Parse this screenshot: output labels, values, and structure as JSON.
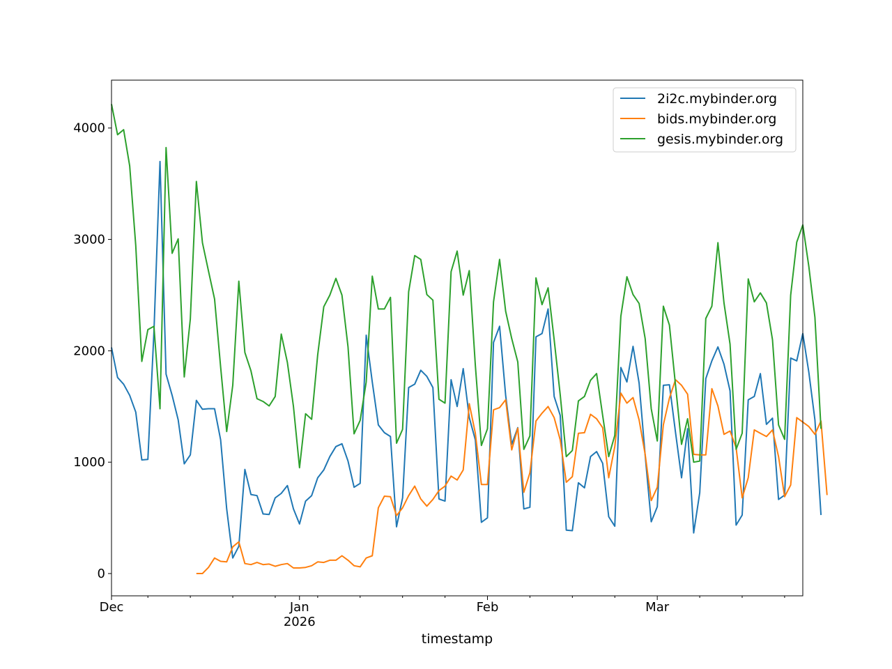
{
  "chart_data": {
    "type": "line",
    "title": "",
    "xlabel": "timestamp",
    "ylabel": "",
    "x_start": "2025-12-01",
    "x_end": "2026-03-25",
    "xlim": [
      "2025-12-01",
      "2026-03-25"
    ],
    "ylim": [
      -200,
      4430
    ],
    "grid": false,
    "legend_position": "top-right",
    "x_major_ticks": [
      {
        "date": "2025-12-01",
        "label": "Dec",
        "sublabel": ""
      },
      {
        "date": "2026-01-01",
        "label": "Jan",
        "sublabel": "2026"
      },
      {
        "date": "2026-02-01",
        "label": "Feb",
        "sublabel": ""
      },
      {
        "date": "2026-03-01",
        "label": "Mar",
        "sublabel": ""
      }
    ],
    "y_ticks": [
      0,
      1000,
      2000,
      3000,
      4000
    ],
    "y_tick_labels": [
      "0",
      "1000",
      "2000",
      "3000",
      "4000"
    ],
    "series": [
      {
        "name": "2i2c.mybinder.org",
        "color": "#1f77b4",
        "start": "2025-12-01",
        "values": [
          2030,
          1760,
          1700,
          1600,
          1450,
          1020,
          1025,
          2170,
          3700,
          1790,
          1600,
          1380,
          985,
          1065,
          1555,
          1475,
          1480,
          1480,
          1200,
          580,
          140,
          245,
          935,
          710,
          700,
          535,
          530,
          680,
          720,
          790,
          580,
          445,
          650,
          700,
          860,
          930,
          1050,
          1140,
          1165,
          1010,
          775,
          810,
          2140,
          1720,
          1335,
          1265,
          1230,
          420,
          680,
          1670,
          1700,
          1825,
          1770,
          1670,
          670,
          650,
          1740,
          1500,
          1840,
          1400,
          1200,
          460,
          500,
          2075,
          2220,
          1600,
          1160,
          1310,
          580,
          595,
          2125,
          2155,
          2375,
          1590,
          1420,
          390,
          385,
          815,
          770,
          1050,
          1095,
          990,
          510,
          425,
          1850,
          1720,
          2040,
          1710,
          1060,
          465,
          600,
          1690,
          1695,
          1270,
          860,
          1300,
          365,
          725,
          1750,
          1910,
          2035,
          1880,
          1640,
          435,
          525,
          1560,
          1590,
          1795,
          1340,
          1395,
          665,
          705,
          1935,
          1910,
          2155,
          1805,
          1380,
          525
        ]
      },
      {
        "name": "bids.mybinder.org",
        "color": "#ff7f0e",
        "start": "2025-12-15",
        "values": [
          0,
          0,
          55,
          140,
          110,
          105,
          240,
          285,
          90,
          80,
          100,
          80,
          85,
          65,
          80,
          90,
          50,
          50,
          55,
          70,
          105,
          100,
          120,
          120,
          160,
          120,
          70,
          60,
          140,
          160,
          590,
          695,
          690,
          520,
          590,
          700,
          785,
          670,
          605,
          665,
          745,
          785,
          875,
          840,
          930,
          1525,
          1260,
          800,
          800,
          1470,
          1490,
          1560,
          1110,
          1305,
          730,
          905,
          1370,
          1440,
          1500,
          1400,
          1200,
          820,
          870,
          1260,
          1265,
          1430,
          1390,
          1310,
          860,
          1140,
          1620,
          1530,
          1580,
          1380,
          1070,
          655,
          775,
          1335,
          1575,
          1740,
          1690,
          1610,
          1070,
          1065,
          1065,
          1660,
          1505,
          1250,
          1280,
          1130,
          680,
          860,
          1290,
          1260,
          1230,
          1290,
          1050,
          690,
          795,
          1400,
          1360,
          1320,
          1250,
          1370,
          705
        ]
      },
      {
        "name": "gesis.mybinder.org",
        "color": "#2ca02c",
        "start": "2025-12-01",
        "values": [
          4215,
          3940,
          3985,
          3660,
          2945,
          1905,
          2190,
          2220,
          1480,
          3825,
          2875,
          3005,
          1765,
          2285,
          3520,
          2970,
          2715,
          2465,
          1855,
          1275,
          1690,
          2625,
          1985,
          1820,
          1570,
          1545,
          1505,
          1590,
          2150,
          1895,
          1500,
          950,
          1435,
          1385,
          1965,
          2395,
          2500,
          2650,
          2500,
          2035,
          1255,
          1375,
          1720,
          2670,
          2375,
          2375,
          2480,
          1170,
          1295,
          2530,
          2855,
          2820,
          2505,
          2455,
          1565,
          1530,
          2710,
          2895,
          2500,
          2720,
          1870,
          1150,
          1300,
          2440,
          2820,
          2355,
          2110,
          1900,
          1115,
          1235,
          2655,
          2415,
          2565,
          2100,
          1605,
          1050,
          1105,
          1550,
          1590,
          1735,
          1795,
          1420,
          1050,
          1240,
          2310,
          2665,
          2505,
          2425,
          2110,
          1480,
          1190,
          2400,
          2230,
          1695,
          1160,
          1390,
          1000,
          1010,
          2290,
          2400,
          2970,
          2430,
          2060,
          1115,
          1260,
          2645,
          2440,
          2520,
          2430,
          2100,
          1335,
          1205,
          2500,
          2975,
          3130,
          2755,
          2300,
          1300
        ]
      }
    ]
  }
}
